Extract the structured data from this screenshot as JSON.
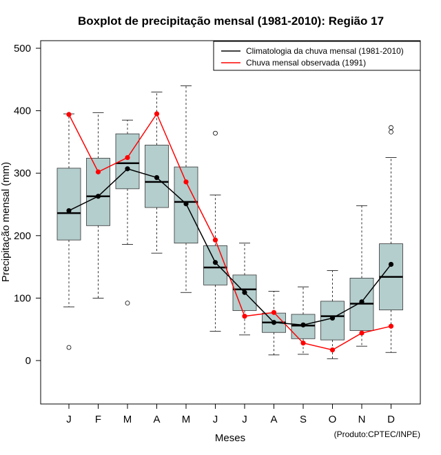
{
  "chart_data": {
    "type": "boxplot",
    "title": "Boxplot de precipitação mensal (1981-2010): Região 17",
    "xlabel": "Meses",
    "ylabel": "Precipitação mensal (mm)",
    "ylim": [
      -70,
      510
    ],
    "yticks": [
      0,
      100,
      200,
      300,
      400,
      500
    ],
    "categories": [
      "J",
      "F",
      "M",
      "A",
      "M",
      "J",
      "J",
      "A",
      "S",
      "O",
      "N",
      "D"
    ],
    "boxes": [
      {
        "whisker_low": 86,
        "q1": 193,
        "median": 236,
        "q3": 308,
        "whisker_high": 395,
        "outliers": [
          21
        ]
      },
      {
        "whisker_low": 100,
        "q1": 216,
        "median": 263,
        "q3": 324,
        "whisker_high": 397,
        "outliers": []
      },
      {
        "whisker_low": 186,
        "q1": 275,
        "median": 316,
        "q3": 363,
        "whisker_high": 385,
        "outliers": [
          92
        ]
      },
      {
        "whisker_low": 172,
        "q1": 245,
        "median": 286,
        "q3": 345,
        "whisker_high": 430,
        "outliers": []
      },
      {
        "whisker_low": 109,
        "q1": 188,
        "median": 254,
        "q3": 310,
        "whisker_high": 440,
        "outliers": []
      },
      {
        "whisker_low": 47,
        "q1": 121,
        "median": 149,
        "q3": 184,
        "whisker_high": 265,
        "outliers": [
          364
        ]
      },
      {
        "whisker_low": 41,
        "q1": 80,
        "median": 114,
        "q3": 137,
        "whisker_high": 188,
        "outliers": []
      },
      {
        "whisker_low": 9,
        "q1": 45,
        "median": 61,
        "q3": 76,
        "whisker_high": 111,
        "outliers": []
      },
      {
        "whisker_low": 10,
        "q1": 35,
        "median": 56,
        "q3": 74,
        "whisker_high": 118,
        "outliers": []
      },
      {
        "whisker_low": 3,
        "q1": 33,
        "median": 71,
        "q3": 95,
        "whisker_high": 144,
        "outliers": []
      },
      {
        "whisker_low": 23,
        "q1": 48,
        "median": 91,
        "q3": 132,
        "whisker_high": 248,
        "outliers": []
      },
      {
        "whisker_low": 13,
        "q1": 81,
        "median": 134,
        "q3": 187,
        "whisker_high": 325,
        "outliers": [
          366,
          373
        ]
      }
    ],
    "series": [
      {
        "name": "Climatologia da chuva mensal (1981-2010)",
        "color": "#000000",
        "values": [
          240,
          263,
          307,
          293,
          251,
          157,
          109,
          61,
          57,
          68,
          94,
          154
        ]
      },
      {
        "name": "Chuva mensal observada (1991)",
        "color": "#ff0000",
        "values": [
          394,
          302,
          325,
          395,
          286,
          193,
          71,
          77,
          28,
          17,
          44,
          55
        ]
      }
    ],
    "box_fill": "#b4cdcd",
    "legend_position": "top-right"
  },
  "credit": "(Produto:CPTEC/INPE)"
}
